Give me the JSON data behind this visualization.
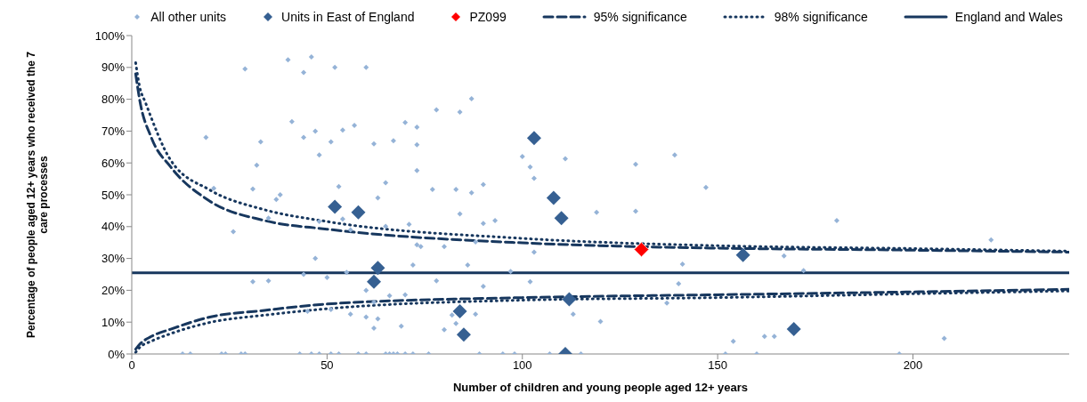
{
  "chart_data": {
    "type": "scatter",
    "xlabel": "Number of children and young people aged 12+ years",
    "ylabel": "Percentage of people aged 12+ years who received the 7 care processes",
    "xlim": [
      0,
      240
    ],
    "xticks": [
      0,
      50,
      100,
      150,
      200
    ],
    "ylim": [
      0,
      100
    ],
    "yticks": [
      {
        "value": 0,
        "label": "0%"
      },
      {
        "value": 10,
        "label": "10%"
      },
      {
        "value": 20,
        "label": "20%"
      },
      {
        "value": 30,
        "label": "30%"
      },
      {
        "value": 40,
        "label": "40%"
      },
      {
        "value": 50,
        "label": "50%"
      },
      {
        "value": 60,
        "label": "60%"
      },
      {
        "value": 70,
        "label": "70%"
      },
      {
        "value": 80,
        "label": "80%"
      },
      {
        "value": 90,
        "label": "90%"
      },
      {
        "value": 100,
        "label": "100%"
      }
    ],
    "grid": false,
    "legend": "top",
    "series": [
      {
        "name": "All other units",
        "marker": "diamond",
        "color": "#95b3d7",
        "x": [
          19,
          29,
          21,
          26,
          31,
          31,
          32,
          33,
          35,
          35,
          37,
          38,
          40,
          41,
          44,
          46,
          44,
          44,
          45,
          47,
          47,
          48,
          48,
          50,
          51,
          51,
          52,
          53,
          54,
          54,
          55,
          56,
          56,
          57,
          60,
          62,
          67,
          70,
          73,
          73,
          73,
          78,
          84,
          87,
          65,
          63,
          77,
          83,
          87,
          90,
          84,
          71,
          65,
          90,
          93,
          73,
          74,
          80,
          88,
          100,
          102,
          103,
          111,
          103,
          72,
          86,
          97,
          78,
          102,
          90,
          60,
          70,
          66,
          62,
          60,
          63,
          82,
          88,
          83,
          62,
          69,
          80,
          113,
          129,
          139,
          147,
          119,
          129,
          141,
          167,
          140,
          172,
          137,
          120,
          154,
          162,
          164.5,
          180.5,
          220,
          208,
          13,
          15,
          23,
          24,
          28,
          29,
          43,
          46,
          48,
          51,
          53,
          58,
          60,
          65,
          66,
          67,
          68,
          70,
          72,
          76,
          89,
          95,
          98,
          107,
          115,
          152,
          160,
          196.5
        ],
        "values": [
          68,
          89.5,
          52,
          38.4,
          51.8,
          22.7,
          59.3,
          66.6,
          23,
          42.7,
          48.5,
          50,
          92.4,
          73,
          88.4,
          93.3,
          68,
          25,
          13.4,
          70,
          30,
          62.5,
          41.6,
          24,
          66.6,
          14,
          90,
          52.6,
          70.3,
          42.4,
          25.6,
          39,
          12.5,
          71.8,
          90,
          66,
          67,
          72.7,
          71.2,
          65.7,
          57.6,
          76.7,
          76,
          80.2,
          53.8,
          49,
          51.7,
          51.7,
          50.6,
          53.2,
          44,
          40.7,
          40.1,
          41,
          41.9,
          34.3,
          33.7,
          33.7,
          35.2,
          62,
          58.7,
          55.2,
          61.3,
          32,
          27.9,
          27.9,
          25.9,
          23,
          22.7,
          21.2,
          20,
          18.6,
          18.3,
          16.3,
          11.6,
          11,
          12.2,
          12.5,
          9.6,
          8.1,
          8.7,
          7.6,
          12.5,
          59.6,
          62.5,
          52.3,
          44.5,
          44.8,
          28.2,
          30.8,
          22.1,
          26.2,
          16,
          10.2,
          4,
          5.5,
          5.5,
          41.9,
          35.8,
          4.9,
          0,
          0,
          0,
          0,
          0,
          0,
          0,
          0,
          0,
          0,
          0,
          0,
          0,
          0,
          0,
          0,
          0,
          0,
          0,
          0,
          0,
          0,
          0,
          0,
          0,
          0,
          0,
          0
        ]
      },
      {
        "name": "Units in East of England",
        "marker": "diamond",
        "color": "#366092",
        "x": [
          52,
          58,
          63,
          62,
          84,
          85,
          103,
          108,
          110,
          112,
          111,
          156.5,
          169.5
        ],
        "values": [
          46.2,
          44.5,
          27,
          22.7,
          13.4,
          6.1,
          67.8,
          49,
          42.7,
          17.2,
          0,
          31.1,
          7.8
        ]
      },
      {
        "name": "PZ099",
        "marker": "diamond",
        "color": "#ff0000",
        "x": [
          130.5
        ],
        "values": [
          32.8
        ]
      },
      {
        "name": "95% significance",
        "type": "line",
        "marker": "none",
        "line_style": "dashed",
        "color": "#17375e",
        "x": [
          1,
          2,
          5,
          10,
          20,
          34,
          50,
          100,
          130,
          200,
          240
        ],
        "values": [
          88,
          80,
          68,
          58.7,
          48,
          41.9,
          39.2,
          34.9,
          33.7,
          32.6,
          32
        ]
      },
      {
        "type": "line",
        "marker": "none",
        "line_style": "dashed",
        "color": "#17375e",
        "x": [
          1,
          2,
          5,
          10,
          20,
          34,
          50,
          100,
          150,
          200,
          240
        ],
        "values": [
          1.5,
          3,
          5.5,
          7.8,
          11.6,
          13.7,
          15.7,
          17.7,
          18.6,
          19.5,
          20.3
        ]
      },
      {
        "name": "98% significance",
        "type": "line",
        "marker": "none",
        "line_style": "dotted",
        "color": "#17375e",
        "x": [
          1,
          2,
          3.5,
          10,
          20,
          34,
          50,
          100,
          150,
          200,
          240
        ],
        "values": [
          91.5,
          84,
          79,
          60.8,
          51.5,
          45.3,
          41.6,
          36.3,
          34,
          33.1,
          32.3
        ]
      },
      {
        "type": "line",
        "marker": "none",
        "line_style": "dotted",
        "color": "#17375e",
        "x": [
          1,
          2,
          5,
          10,
          20,
          34,
          50,
          100,
          150,
          200,
          240
        ],
        "values": [
          0.5,
          2,
          4,
          6.4,
          9.9,
          12.2,
          14.2,
          16.9,
          17.7,
          18.9,
          19.8
        ]
      },
      {
        "name": "England and Wales",
        "type": "line",
        "marker": "none",
        "line_style": "solid",
        "color": "#17375e",
        "x": [
          0,
          240
        ],
        "values": [
          25.5,
          25.5
        ]
      }
    ]
  }
}
